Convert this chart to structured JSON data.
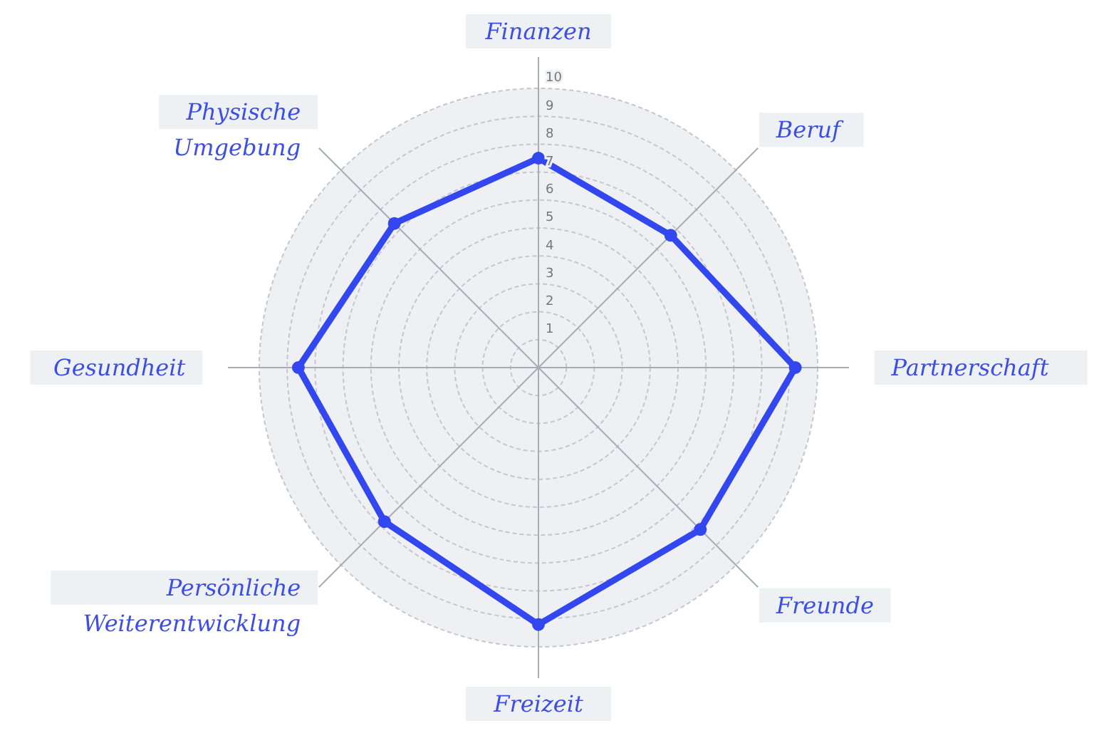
{
  "chart_data": {
    "type": "radar",
    "categories": [
      "Finanzen",
      "Beruf",
      "Partnerschaft",
      "Freunde",
      "Freizeit",
      "Persönliche Weiterentwicklung",
      "Gesundheit",
      "Physische Umgebung"
    ],
    "series": [
      {
        "color": "#3347f0",
        "values": [
          7.5,
          6.7,
          9.2,
          8.2,
          9.2,
          7.8,
          8.6,
          7.3
        ]
      }
    ],
    "ylim": [
      0,
      10
    ],
    "yticks": [
      1,
      2,
      3,
      4,
      5,
      6,
      7,
      8,
      9,
      10
    ],
    "grid": true,
    "marker": "circle",
    "line_style": "solid"
  }
}
